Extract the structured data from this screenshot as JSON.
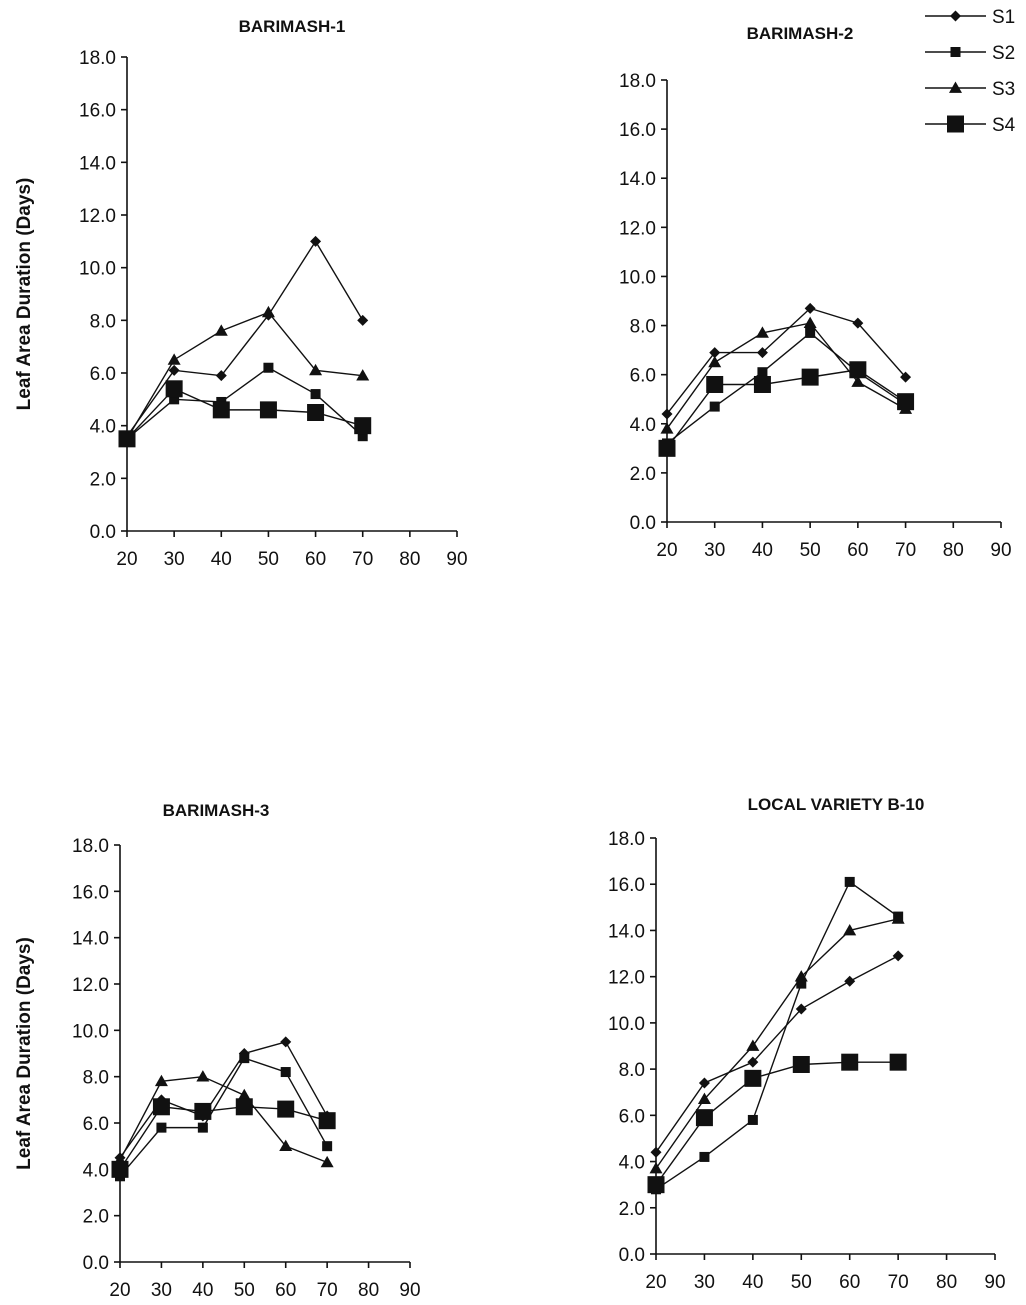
{
  "chart_data": [
    {
      "type": "line",
      "title": "BARIMASH-1",
      "ylabel": "Leaf Area Duration (Days)",
      "xlabel": "",
      "x_ticks": [
        "20",
        "30",
        "40",
        "50",
        "60",
        "70",
        "80",
        "90"
      ],
      "y_ticks": [
        "0.0",
        "2.0",
        "4.0",
        "6.0",
        "8.0",
        "10.0",
        "12.0",
        "14.0",
        "16.0",
        "18.0"
      ],
      "xlim": [
        20,
        90
      ],
      "ylim": [
        0,
        18
      ],
      "x": [
        20,
        30,
        40,
        50,
        60,
        70
      ],
      "series": [
        {
          "name": "S1",
          "marker": "diamond",
          "values": [
            3.6,
            6.1,
            5.9,
            8.2,
            11.0,
            8.0
          ]
        },
        {
          "name": "S2",
          "marker": "square",
          "values": [
            3.5,
            5.0,
            4.9,
            6.2,
            5.2,
            3.6
          ]
        },
        {
          "name": "S3",
          "marker": "triangle",
          "values": [
            3.5,
            6.5,
            7.6,
            8.3,
            6.1,
            5.9
          ]
        },
        {
          "name": "S4",
          "marker": "square-large",
          "values": [
            3.5,
            5.4,
            4.6,
            4.6,
            4.5,
            4.0
          ]
        }
      ],
      "legend": "none"
    },
    {
      "type": "line",
      "title": "BARIMASH-2",
      "ylabel": "",
      "xlabel": "",
      "x_ticks": [
        "20",
        "30",
        "40",
        "50",
        "60",
        "70",
        "80",
        "90"
      ],
      "y_ticks": [
        "0.0",
        "2.0",
        "4.0",
        "6.0",
        "8.0",
        "10.0",
        "12.0",
        "14.0",
        "16.0",
        "18.0"
      ],
      "xlim": [
        20,
        90
      ],
      "ylim": [
        0,
        18
      ],
      "x": [
        20,
        30,
        40,
        50,
        60,
        70
      ],
      "series": [
        {
          "name": "S1",
          "marker": "diamond",
          "values": [
            4.4,
            6.9,
            6.9,
            8.7,
            8.1,
            5.9
          ]
        },
        {
          "name": "S2",
          "marker": "square",
          "values": [
            3.2,
            4.7,
            6.1,
            7.7,
            6.1,
            4.8
          ]
        },
        {
          "name": "S3",
          "marker": "triangle",
          "values": [
            3.8,
            6.5,
            7.7,
            8.1,
            5.7,
            4.6
          ]
        },
        {
          "name": "S4",
          "marker": "square-large",
          "values": [
            3.0,
            5.6,
            5.6,
            5.9,
            6.2,
            4.9
          ]
        }
      ],
      "legend": "top-right",
      "legend_entries": [
        "S1",
        "S2",
        "S3",
        "S4"
      ]
    },
    {
      "type": "line",
      "title": "BARIMASH-3",
      "ylabel": "Leaf Area Duration (Days)",
      "xlabel": "",
      "x_ticks": [
        "20",
        "30",
        "40",
        "50",
        "60",
        "70",
        "80",
        "90"
      ],
      "y_ticks": [
        "0.0",
        "2.0",
        "4.0",
        "6.0",
        "8.0",
        "10.0",
        "12.0",
        "14.0",
        "16.0",
        "18.0"
      ],
      "xlim": [
        20,
        90
      ],
      "ylim": [
        0,
        18
      ],
      "x": [
        20,
        30,
        40,
        50,
        60,
        70
      ],
      "series": [
        {
          "name": "S1",
          "marker": "diamond",
          "values": [
            4.5,
            7.0,
            6.3,
            9.0,
            9.5,
            6.3
          ]
        },
        {
          "name": "S2",
          "marker": "square",
          "values": [
            3.7,
            5.8,
            5.8,
            8.8,
            8.2,
            5.0
          ]
        },
        {
          "name": "S3",
          "marker": "triangle",
          "values": [
            4.4,
            7.8,
            8.0,
            7.2,
            5.0,
            4.3
          ]
        },
        {
          "name": "S4",
          "marker": "square-large",
          "values": [
            4.0,
            6.7,
            6.5,
            6.7,
            6.6,
            6.1
          ]
        }
      ],
      "legend": "none"
    },
    {
      "type": "line",
      "title": "LOCAL VARIETY B-10",
      "ylabel": "",
      "xlabel": "",
      "x_ticks": [
        "20",
        "30",
        "40",
        "50",
        "60",
        "70",
        "80",
        "90"
      ],
      "y_ticks": [
        "0.0",
        "2.0",
        "4.0",
        "6.0",
        "8.0",
        "10.0",
        "12.0",
        "14.0",
        "16.0",
        "18.0"
      ],
      "xlim": [
        20,
        90
      ],
      "ylim": [
        0,
        18
      ],
      "x": [
        20,
        30,
        40,
        50,
        60,
        70
      ],
      "series": [
        {
          "name": "S1",
          "marker": "diamond",
          "values": [
            4.4,
            7.4,
            8.3,
            10.6,
            11.8,
            12.9
          ]
        },
        {
          "name": "S2",
          "marker": "square",
          "values": [
            2.8,
            4.2,
            5.8,
            11.7,
            16.1,
            14.6
          ]
        },
        {
          "name": "S3",
          "marker": "triangle",
          "values": [
            3.7,
            6.7,
            9.0,
            12.0,
            14.0,
            14.5
          ]
        },
        {
          "name": "S4",
          "marker": "square-large",
          "values": [
            3.0,
            5.9,
            7.6,
            8.2,
            8.3,
            8.3
          ]
        }
      ],
      "legend": "none"
    }
  ]
}
